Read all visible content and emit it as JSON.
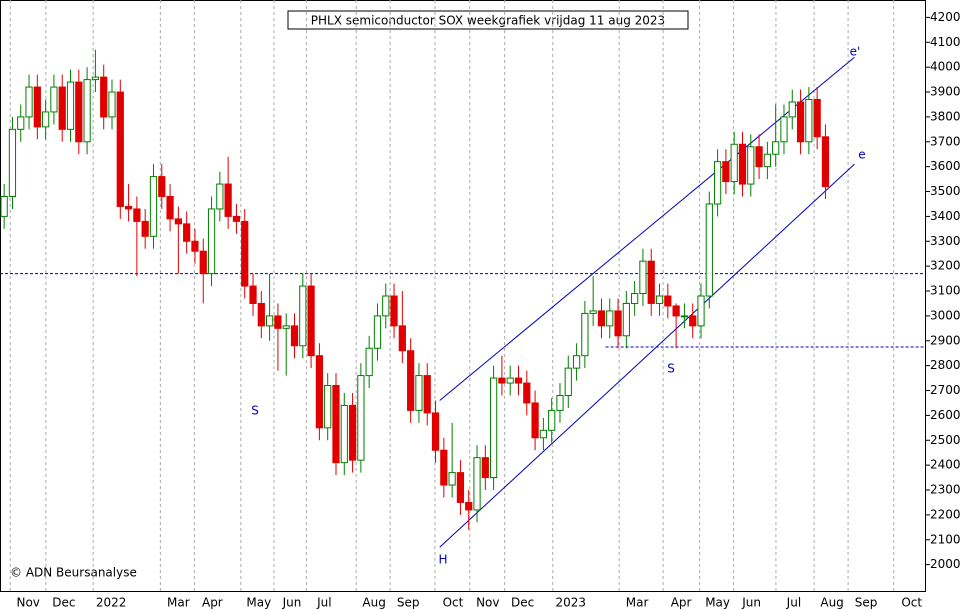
{
  "chart_data": {
    "type": "candlestick",
    "title": "PHLX semiconductor SOX weekgrafiek vrijdag 11 aug 2023",
    "credit": "© ADN Beursanalyse",
    "x": [
      0,
      1,
      2,
      3,
      4,
      5,
      6,
      7,
      8,
      9,
      10,
      11,
      12,
      13,
      14,
      15,
      16,
      17,
      18,
      19,
      20,
      21,
      22,
      23,
      24,
      25,
      26,
      27,
      28,
      29,
      30,
      31,
      32,
      33,
      34,
      35,
      36,
      37,
      38,
      39,
      40,
      41,
      42,
      43,
      44,
      45,
      46,
      47,
      48,
      49,
      50,
      51,
      52,
      53,
      54,
      55,
      56,
      57,
      58,
      59,
      60,
      61,
      62,
      63,
      64,
      65,
      66,
      67,
      68,
      69,
      70,
      71,
      72,
      73,
      74,
      75,
      76,
      77,
      78,
      79,
      80,
      81,
      82,
      83,
      84,
      85,
      86,
      87,
      88,
      89,
      90,
      91,
      92,
      93,
      94,
      95,
      96,
      97,
      98,
      99
    ],
    "open": [
      3400,
      3480,
      3750,
      3800,
      3920,
      3760,
      3820,
      3920,
      3750,
      3940,
      3700,
      3950,
      3960,
      3800,
      3900,
      3440,
      3430,
      3380,
      3320,
      3560,
      3480,
      3390,
      3370,
      3300,
      3260,
      3170,
      3430,
      3530,
      3400,
      3380,
      3120,
      3050,
      2960,
      3000,
      2950,
      2960,
      2880,
      3120,
      2840,
      2550,
      2720,
      2410,
      2640,
      2420,
      2760,
      2870,
      3000,
      3080,
      2960,
      2860,
      2620,
      2760,
      2610,
      2460,
      2320,
      2370,
      2250,
      2220,
      2430,
      2350,
      2750,
      2730,
      2750,
      2730,
      2650,
      2510,
      2540,
      2620,
      2680,
      2790,
      2840,
      3010,
      3020,
      2960,
      3020,
      2920,
      3050,
      3090,
      3220,
      3050,
      3080,
      3040,
      3000,
      3000,
      2960,
      3080,
      3450,
      3620,
      3540,
      3690,
      3530,
      3680,
      3600,
      3650,
      3700,
      3800,
      3860,
      3700,
      3870,
      3720
    ],
    "high": [
      3530,
      3800,
      3850,
      3970,
      3970,
      3870,
      3970,
      3970,
      3990,
      3990,
      4000,
      4070,
      4010,
      3950,
      3950,
      3530,
      3480,
      3430,
      3610,
      3610,
      3530,
      3440,
      3420,
      3350,
      3310,
      3480,
      3580,
      3640,
      3450,
      3430,
      3170,
      3100,
      3170,
      3050,
      3010,
      3010,
      3170,
      3170,
      2890,
      2770,
      2770,
      2690,
      2690,
      2810,
      2920,
      3050,
      3130,
      3130,
      3100,
      2910,
      2810,
      2810,
      2660,
      2510,
      2570,
      2420,
      2300,
      2480,
      2480,
      2800,
      2840,
      2800,
      2800,
      2780,
      2700,
      2590,
      2670,
      2730,
      2840,
      2890,
      3060,
      3160,
      3070,
      3070,
      3070,
      3100,
      3140,
      3270,
      3270,
      3130,
      3130,
      3050,
      3050,
      3050,
      3130,
      3500,
      3670,
      3670,
      3740,
      3740,
      3730,
      3730,
      3700,
      3850,
      3850,
      3910,
      3910,
      3920,
      3920,
      3770
    ],
    "low": [
      3350,
      3430,
      3700,
      3750,
      3710,
      3710,
      3770,
      3700,
      3700,
      3650,
      3650,
      3900,
      3750,
      3750,
      3390,
      3380,
      3160,
      3270,
      3270,
      3430,
      3340,
      3170,
      3250,
      3210,
      3050,
      3120,
      3380,
      3350,
      3330,
      3070,
      3000,
      2910,
      2900,
      2780,
      2760,
      2830,
      2830,
      2790,
      2500,
      2500,
      2360,
      2360,
      2370,
      2370,
      2710,
      2820,
      2950,
      2910,
      2810,
      2570,
      2570,
      2560,
      2410,
      2270,
      2270,
      2200,
      2140,
      2170,
      2300,
      2300,
      2680,
      2680,
      2680,
      2600,
      2460,
      2460,
      2490,
      2570,
      2630,
      2740,
      2790,
      2960,
      2910,
      2910,
      2870,
      2870,
      3000,
      3040,
      3000,
      3000,
      2990,
      2870,
      2950,
      2910,
      2910,
      3030,
      3400,
      3490,
      3490,
      3480,
      3480,
      3550,
      3550,
      3600,
      3650,
      3750,
      3650,
      3650,
      3670,
      3470
    ],
    "close": [
      3480,
      3750,
      3800,
      3920,
      3760,
      3820,
      3920,
      3750,
      3940,
      3700,
      3950,
      3960,
      3800,
      3900,
      3440,
      3430,
      3380,
      3320,
      3560,
      3480,
      3390,
      3370,
      3300,
      3260,
      3170,
      3430,
      3530,
      3400,
      3380,
      3120,
      3050,
      2960,
      3000,
      2950,
      2960,
      2880,
      3120,
      2840,
      2550,
      2720,
      2410,
      2640,
      2420,
      2760,
      2870,
      3000,
      3080,
      2960,
      2860,
      2620,
      2760,
      2610,
      2460,
      2320,
      2370,
      2250,
      2220,
      2430,
      2350,
      2750,
      2730,
      2750,
      2730,
      2650,
      2510,
      2540,
      2620,
      2680,
      2790,
      2840,
      3010,
      3020,
      2960,
      3020,
      2920,
      3050,
      3090,
      3220,
      3050,
      3080,
      3040,
      3000,
      3000,
      2960,
      3080,
      3450,
      3620,
      3540,
      3690,
      3530,
      3680,
      3600,
      3650,
      3700,
      3800,
      3860,
      3700,
      3870,
      3720,
      3520
    ],
    "up_color": "#008000",
    "down_color": "#e00000",
    "xlim": [
      -0.5,
      111
    ],
    "ylim": [
      1890,
      4270
    ],
    "xticks": [
      {
        "value": 2.9,
        "label": "Nov"
      },
      {
        "value": 7.2,
        "label": "Dec"
      },
      {
        "value": 12.9,
        "label": "2022"
      },
      {
        "value": 21,
        "label": "Mar"
      },
      {
        "value": 25.1,
        "label": "Apr"
      },
      {
        "value": 30.7,
        "label": "May"
      },
      {
        "value": 34.7,
        "label": "Jun"
      },
      {
        "value": 38.6,
        "label": "Jul"
      },
      {
        "value": 44.6,
        "label": "Aug"
      },
      {
        "value": 48.7,
        "label": "Sep"
      },
      {
        "value": 54.1,
        "label": "Oct"
      },
      {
        "value": 58.3,
        "label": "Nov"
      },
      {
        "value": 62.5,
        "label": "Dec"
      },
      {
        "value": 68.3,
        "label": "2023"
      },
      {
        "value": 76.3,
        "label": "Mar"
      },
      {
        "value": 81.6,
        "label": "Apr"
      },
      {
        "value": 86,
        "label": "May"
      },
      {
        "value": 90.1,
        "label": "Jun"
      },
      {
        "value": 95.2,
        "label": "Jul"
      },
      {
        "value": 99.8,
        "label": "Aug"
      },
      {
        "value": 103.9,
        "label": "Sep"
      },
      {
        "value": 109.4,
        "label": "Oct"
      }
    ],
    "yticks": [
      2000,
      2100,
      2200,
      2300,
      2400,
      2500,
      2600,
      2700,
      2800,
      2900,
      3000,
      3100,
      3200,
      3300,
      3400,
      3500,
      3600,
      3700,
      3800,
      3900,
      4000,
      4100,
      4200
    ],
    "lines": [
      {
        "x": [
          52.5,
          102.5
        ],
        "y": [
          2660,
          4040
        ],
        "color": "#0000c0"
      },
      {
        "x": [
          52.5,
          102.5
        ],
        "y": [
          2070,
          3610
        ],
        "color": "#0000c0"
      },
      {
        "x": [
          -0.5,
          111
        ],
        "y": [
          3170,
          3170
        ],
        "color": "#0000c0",
        "dashed": true
      },
      {
        "x": [
          72.5,
          111
        ],
        "y": [
          2875,
          2875
        ],
        "color": "#0000c0",
        "dashed": true
      }
    ],
    "annotations": [
      "e'",
      "e",
      "S",
      "S",
      "H"
    ]
  }
}
